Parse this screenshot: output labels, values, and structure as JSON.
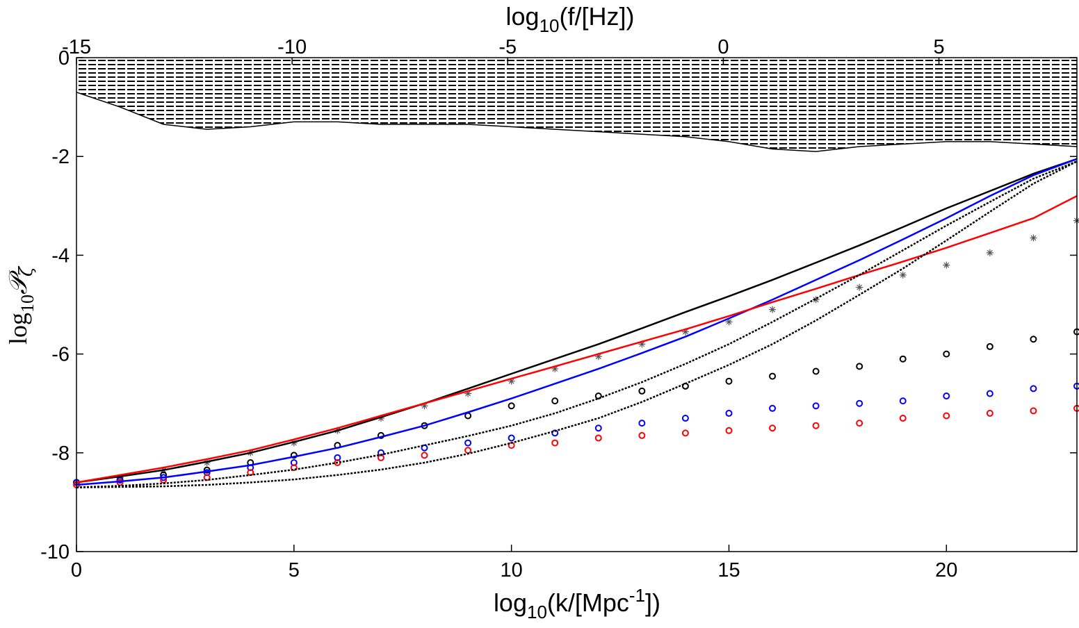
{
  "chart_data": {
    "type": "line",
    "xlabel": [
      "log",
      "10",
      "(k/[Mpc",
      "-1",
      "])"
    ],
    "x2label": [
      "log",
      "10",
      "(f/[Hz])"
    ],
    "ylabel": [
      "log",
      "10",
      "𝒫",
      "ζ"
    ],
    "xlim": [
      0,
      23
    ],
    "xticks": [
      0,
      5,
      10,
      15,
      20
    ],
    "x2lim": [
      -15,
      8.2
    ],
    "x2ticks": [
      -15,
      -10,
      -5,
      0,
      5
    ],
    "ylim": [
      -10,
      0
    ],
    "yticks": [
      -10,
      -8,
      -6,
      -4,
      -2,
      0
    ],
    "grid": false,
    "x": [
      0,
      1,
      2,
      3,
      4,
      5,
      6,
      7,
      8,
      9,
      10,
      11,
      12,
      13,
      14,
      15,
      16,
      17,
      18,
      19,
      20,
      21,
      22,
      23
    ],
    "series": [
      {
        "style": "hatch",
        "color": "#000000",
        "values": [
          -0.7,
          -1.0,
          -1.35,
          -1.45,
          -1.4,
          -1.3,
          -1.3,
          -1.35,
          -1.35,
          -1.35,
          -1.4,
          -1.45,
          -1.5,
          -1.55,
          -1.6,
          -1.7,
          -1.85,
          -1.9,
          -1.8,
          -1.75,
          -1.7,
          -1.7,
          -1.75,
          -1.8
        ]
      },
      {
        "style": "star",
        "color": "#555555",
        "values": [
          -8.6,
          -8.5,
          -8.35,
          -8.2,
          -8.0,
          -7.8,
          -7.55,
          -7.3,
          -7.05,
          -6.8,
          -6.55,
          -6.3,
          -6.05,
          -5.8,
          -5.55,
          -5.35,
          -5.1,
          -4.9,
          -4.65,
          -4.4,
          -4.2,
          -3.95,
          -3.65,
          -3.3
        ]
      },
      {
        "style": "circle",
        "color": "#000000",
        "values": [
          -8.6,
          -8.55,
          -8.45,
          -8.35,
          -8.2,
          -8.05,
          -7.85,
          -7.65,
          -7.45,
          -7.25,
          -7.05,
          -6.95,
          -6.85,
          -6.75,
          -6.65,
          -6.55,
          -6.45,
          -6.35,
          -6.25,
          -6.1,
          -6.0,
          -5.85,
          -5.7,
          -5.55
        ]
      },
      {
        "style": "circle",
        "color": "#0000ff",
        "values": [
          -8.6,
          -8.55,
          -8.5,
          -8.4,
          -8.3,
          -8.2,
          -8.1,
          -8.0,
          -7.9,
          -7.8,
          -7.7,
          -7.6,
          -7.5,
          -7.4,
          -7.3,
          -7.2,
          -7.1,
          -7.05,
          -7.0,
          -6.95,
          -6.85,
          -6.8,
          -6.7,
          -6.65
        ]
      },
      {
        "style": "circle",
        "color": "#ff0000",
        "values": [
          -8.65,
          -8.6,
          -8.55,
          -8.5,
          -8.4,
          -8.3,
          -8.2,
          -8.1,
          -8.05,
          -7.95,
          -7.85,
          -7.8,
          -7.7,
          -7.65,
          -7.6,
          -7.55,
          -7.5,
          -7.45,
          -7.4,
          -7.3,
          -7.25,
          -7.2,
          -7.15,
          -7.1
        ]
      },
      {
        "style": "solid",
        "color": "#000000",
        "values": [
          -8.6,
          -8.48,
          -8.35,
          -8.18,
          -8.0,
          -7.78,
          -7.55,
          -7.28,
          -7.0,
          -6.7,
          -6.4,
          -6.1,
          -5.8,
          -5.48,
          -5.15,
          -4.83,
          -4.5,
          -4.15,
          -3.8,
          -3.43,
          -3.05,
          -2.7,
          -2.35,
          -2.05
        ]
      },
      {
        "style": "solid",
        "color": "#0000ff",
        "values": [
          -8.65,
          -8.58,
          -8.5,
          -8.38,
          -8.25,
          -8.08,
          -7.9,
          -7.68,
          -7.45,
          -7.18,
          -6.9,
          -6.6,
          -6.3,
          -5.98,
          -5.65,
          -5.28,
          -4.9,
          -4.5,
          -4.1,
          -3.68,
          -3.25,
          -2.8,
          -2.38,
          -2.05
        ]
      },
      {
        "style": "solid",
        "color": "#ff0000",
        "values": [
          -8.6,
          -8.45,
          -8.3,
          -8.13,
          -7.95,
          -7.73,
          -7.5,
          -7.25,
          -7.0,
          -6.75,
          -6.5,
          -6.25,
          -6.0,
          -5.75,
          -5.5,
          -5.23,
          -4.95,
          -4.68,
          -4.4,
          -4.13,
          -3.85,
          -3.55,
          -3.25,
          -2.8
        ]
      },
      {
        "style": "dotted",
        "color": "#000000",
        "values": [
          -8.7,
          -8.67,
          -8.62,
          -8.55,
          -8.45,
          -8.34,
          -8.2,
          -8.04,
          -7.85,
          -7.66,
          -7.45,
          -7.2,
          -6.9,
          -6.57,
          -6.2,
          -5.8,
          -5.35,
          -4.88,
          -4.4,
          -3.9,
          -3.4,
          -2.92,
          -2.45,
          -2.1
        ]
      },
      {
        "style": "dotted",
        "color": "#000000",
        "values": [
          -8.7,
          -8.69,
          -8.68,
          -8.65,
          -8.6,
          -8.54,
          -8.45,
          -8.34,
          -8.2,
          -8.02,
          -7.8,
          -7.56,
          -7.3,
          -6.97,
          -6.6,
          -6.22,
          -5.8,
          -5.32,
          -4.8,
          -4.27,
          -3.7,
          -3.12,
          -2.55,
          -2.1
        ]
      }
    ]
  }
}
